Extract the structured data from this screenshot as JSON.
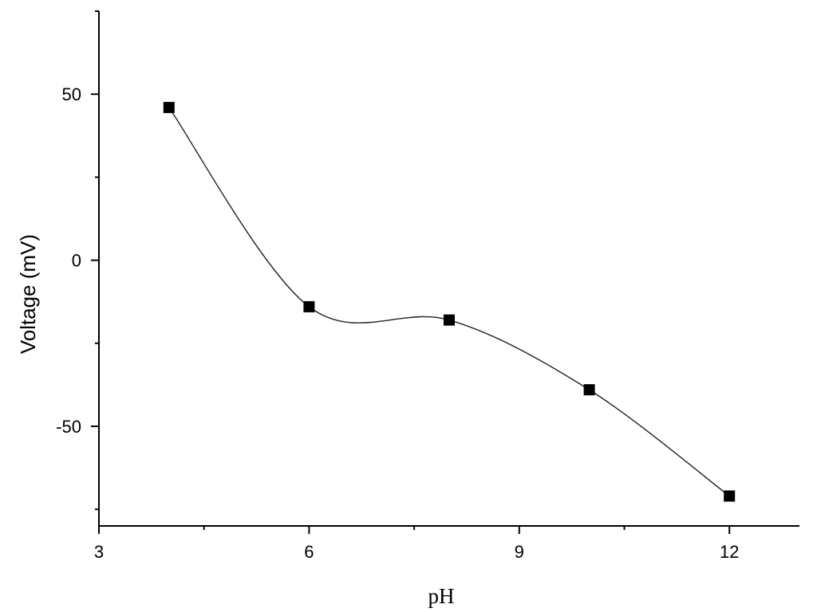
{
  "chart_data": {
    "type": "line",
    "title": "",
    "xlabel": "pH",
    "ylabel": "Voltage (mV)",
    "xlim": [
      3,
      13
    ],
    "ylim": [
      -80,
      75
    ],
    "x_ticks": [
      3,
      6,
      9,
      12
    ],
    "x_minor_ticks": [
      4.5,
      7.5,
      10.5
    ],
    "y_ticks": [
      -50,
      0,
      50
    ],
    "y_minor_ticks": [
      -75,
      -25,
      25,
      75
    ],
    "grid": false,
    "legend": "none",
    "marker": "square",
    "smooth": true,
    "series": [
      {
        "x": [
          4,
          6,
          8,
          10,
          12
        ],
        "values": [
          46,
          -14,
          -18,
          -39,
          -71
        ],
        "color": "#000000"
      }
    ]
  }
}
